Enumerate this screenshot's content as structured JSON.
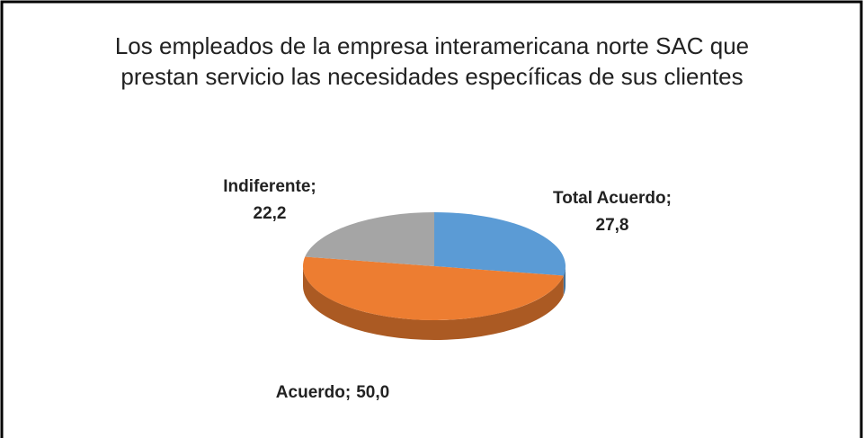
{
  "chart_data": {
    "type": "pie",
    "title": "Los empleados de la empresa interamericana norte SAC que prestan servicio las necesidades específicas de sus clientes",
    "categories": [
      "Total Acuerdo",
      "Acuerdo",
      "Indiferente"
    ],
    "values": [
      27.8,
      50.0,
      22.2
    ],
    "value_labels": [
      "27,8",
      "50,0",
      "22,2"
    ],
    "label_separator": ";",
    "colors": [
      "#5b9bd5",
      "#ed7d31",
      "#a5a5a5"
    ]
  }
}
